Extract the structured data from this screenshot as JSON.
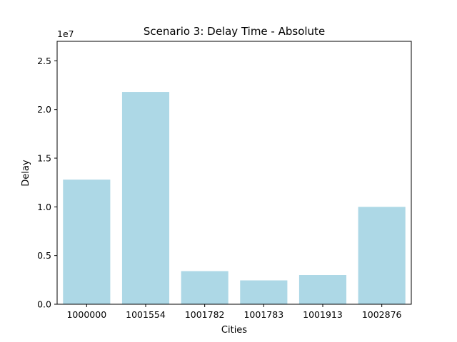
{
  "chart_data": {
    "type": "bar",
    "title": "Scenario 3: Delay Time - Absolute",
    "xlabel": "Cities",
    "ylabel": "Delay",
    "y_offset_label": "1e7",
    "y_scale": 10000000,
    "categories": [
      "1000000",
      "1001554",
      "1001782",
      "1001783",
      "1001913",
      "1002876"
    ],
    "values": [
      12800000,
      21800000,
      3400000,
      2450000,
      3000000,
      10000000
    ],
    "ylim": [
      0,
      27000000
    ],
    "yticks": [
      0,
      5000000,
      10000000,
      15000000,
      20000000,
      25000000
    ],
    "ytick_labels": [
      "0.0",
      "0.5",
      "1.0",
      "1.5",
      "2.0",
      "2.5"
    ],
    "grid": false,
    "legend": "none",
    "bar_color": "#add8e6"
  }
}
